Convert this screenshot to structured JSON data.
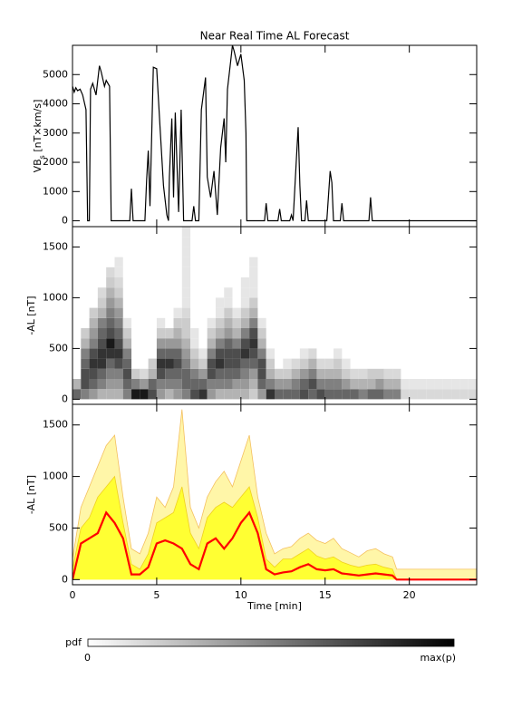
{
  "title": "Near Real Time AL Forecast",
  "chart_data": [
    {
      "type": "line",
      "ylabel": [
        "VB",
        "s",
        " [nT×km/s]"
      ],
      "color": "#000000",
      "xlim": [
        0,
        24
      ],
      "xticks": [
        0,
        5,
        10,
        15,
        20
      ],
      "ylim": [
        -200,
        6000
      ],
      "yticks": [
        0,
        1000,
        2000,
        3000,
        4000,
        5000
      ],
      "x": [
        0,
        0.1,
        0.2,
        0.3,
        0.45,
        0.6,
        0.8,
        0.9,
        1.0,
        1.07,
        1.2,
        1.4,
        1.6,
        1.7,
        1.9,
        2.0,
        2.2,
        2.3,
        3.4,
        3.5,
        3.6,
        4.3,
        4.4,
        4.5,
        4.6,
        4.8,
        5.0,
        5.2,
        5.4,
        5.6,
        5.7,
        5.75,
        5.9,
        6.0,
        6.1,
        6.2,
        6.3,
        6.45,
        6.6,
        7.1,
        7.2,
        7.3,
        7.5,
        7.65,
        7.9,
        8.0,
        8.2,
        8.4,
        8.6,
        8.8,
        9.0,
        9.1,
        9.2,
        9.4,
        9.5,
        9.6,
        9.8,
        10.0,
        10.2,
        10.3,
        10.35,
        11.4,
        11.5,
        11.6,
        12.2,
        12.3,
        12.4,
        12.9,
        13.0,
        13.1,
        13.2,
        13.3,
        13.4,
        13.5,
        13.6,
        13.8,
        13.9,
        14.0,
        15.1,
        15.3,
        15.4,
        15.5,
        15.9,
        16.0,
        16.1,
        17.6,
        17.7,
        17.8,
        24
      ],
      "values": [
        4600,
        4400,
        4550,
        4450,
        4500,
        4300,
        3800,
        0,
        0,
        4500,
        4700,
        4300,
        5300,
        5100,
        4600,
        4800,
        4600,
        0,
        0,
        1100,
        0,
        0,
        1400,
        2400,
        500,
        5250,
        5200,
        3200,
        1200,
        200,
        0,
        1500,
        3500,
        800,
        3700,
        2000,
        300,
        3800,
        0,
        0,
        500,
        0,
        0,
        3800,
        4900,
        1500,
        800,
        1700,
        200,
        2500,
        3500,
        2000,
        4500,
        5500,
        6000,
        5800,
        5300,
        5700,
        4800,
        3000,
        0,
        0,
        600,
        0,
        0,
        400,
        0,
        0,
        200,
        0,
        1100,
        2200,
        3200,
        1200,
        0,
        0,
        700,
        0,
        0,
        1700,
        1300,
        0,
        0,
        600,
        0,
        0,
        800,
        0,
        0
      ]
    },
    {
      "type": "heatmap",
      "ylabel": "-AL [nT]",
      "xlim": [
        0,
        24
      ],
      "xticks": [
        0,
        5,
        10,
        15,
        20
      ],
      "ylim": [
        -50,
        1700
      ],
      "yticks": [
        0,
        500,
        1000,
        1500
      ],
      "x_bin": 0.5,
      "y_bin": 100,
      "x": [
        0,
        0.5,
        1,
        1.5,
        2,
        2.5,
        3,
        3.5,
        4,
        4.5,
        5,
        5.5,
        6,
        6.5,
        7,
        7.5,
        8,
        8.5,
        9,
        9.5,
        10,
        10.5,
        11,
        11.5,
        12,
        12.5,
        13,
        13.5,
        14,
        14.5,
        15,
        15.5,
        16,
        16.5,
        17,
        17.5,
        18,
        18.5,
        19,
        19.5,
        20,
        20.5,
        21,
        21.5,
        22,
        22.5,
        23,
        23.5
      ],
      "pdf": [
        [
          0.6,
          0.3
        ],
        [
          0.5,
          0.7,
          0.7,
          0.6,
          0.5,
          0.3,
          0.2
        ],
        [
          0.4,
          0.6,
          0.7,
          0.8,
          0.7,
          0.5,
          0.4,
          0.3,
          0.2
        ],
        [
          0.3,
          0.5,
          0.6,
          0.8,
          0.8,
          0.7,
          0.6,
          0.5,
          0.3,
          0.2,
          0.15
        ],
        [
          0.3,
          0.4,
          0.5,
          0.6,
          0.8,
          0.9,
          0.7,
          0.6,
          0.5,
          0.4,
          0.3,
          0.2,
          0.15
        ],
        [
          0.3,
          0.4,
          0.5,
          0.7,
          0.8,
          0.7,
          0.6,
          0.5,
          0.4,
          0.3,
          0.2,
          0.15,
          0.1,
          0.1
        ],
        [
          0.5,
          0.6,
          0.7,
          0.6,
          0.5,
          0.3,
          0.2,
          0.1
        ],
        [
          0.9,
          0.5,
          0.2
        ],
        [
          0.9,
          0.4,
          0.15
        ],
        [
          0.7,
          0.6,
          0.3,
          0.2
        ],
        [
          0.4,
          0.5,
          0.7,
          0.8,
          0.6,
          0.4,
          0.2,
          0.1
        ],
        [
          0.3,
          0.5,
          0.6,
          0.8,
          0.6,
          0.4,
          0.2
        ],
        [
          0.4,
          0.5,
          0.6,
          0.7,
          0.6,
          0.4,
          0.3,
          0.2,
          0.1
        ],
        [
          0.5,
          0.6,
          0.6,
          0.5,
          0.4,
          0.3,
          0.2,
          0.2,
          0.15,
          0.1,
          0.1,
          0.1,
          0.1,
          0.1,
          0.1,
          0.1,
          0.1
        ],
        [
          0.7,
          0.6,
          0.5,
          0.3,
          0.2,
          0.1,
          0.1
        ],
        [
          0.8,
          0.6,
          0.4,
          0.2,
          0.1
        ],
        [
          0.4,
          0.5,
          0.7,
          0.7,
          0.5,
          0.3,
          0.2,
          0.1
        ],
        [
          0.3,
          0.5,
          0.6,
          0.8,
          0.7,
          0.5,
          0.3,
          0.2,
          0.1,
          0.1
        ],
        [
          0.3,
          0.5,
          0.6,
          0.7,
          0.7,
          0.6,
          0.4,
          0.3,
          0.2,
          0.1,
          0.1
        ],
        [
          0.3,
          0.4,
          0.6,
          0.7,
          0.7,
          0.5,
          0.3,
          0.2,
          0.1
        ],
        [
          0.3,
          0.4,
          0.5,
          0.6,
          0.8,
          0.7,
          0.5,
          0.3,
          0.2,
          0.1,
          0.1,
          0.1
        ],
        [
          0.2,
          0.3,
          0.4,
          0.6,
          0.7,
          0.8,
          0.7,
          0.5,
          0.3,
          0.2,
          0.1,
          0.1,
          0.1,
          0.1
        ],
        [
          0.4,
          0.6,
          0.7,
          0.7,
          0.5,
          0.3,
          0.2,
          0.1
        ],
        [
          0.8,
          0.5,
          0.3,
          0.2,
          0.1
        ],
        [
          0.6,
          0.4,
          0.2
        ],
        [
          0.6,
          0.4,
          0.2,
          0.1
        ],
        [
          0.6,
          0.5,
          0.3,
          0.15
        ],
        [
          0.7,
          0.6,
          0.4,
          0.2,
          0.1
        ],
        [
          0.6,
          0.7,
          0.5,
          0.3,
          0.15
        ],
        [
          0.7,
          0.5,
          0.3,
          0.15
        ],
        [
          0.6,
          0.5,
          0.3,
          0.15
        ],
        [
          0.6,
          0.5,
          0.3,
          0.2,
          0.1
        ],
        [
          0.6,
          0.4,
          0.2,
          0.1
        ],
        [
          0.6,
          0.3,
          0.15
        ],
        [
          0.5,
          0.3,
          0.15
        ],
        [
          0.6,
          0.3,
          0.2
        ],
        [
          0.6,
          0.4,
          0.2
        ],
        [
          0.5,
          0.3,
          0.15
        ],
        [
          0.5,
          0.3,
          0.15
        ],
        [
          0.15,
          0.1
        ],
        [
          0.15,
          0.1
        ],
        [
          0.15,
          0.1
        ],
        [
          0.15,
          0.1
        ],
        [
          0.15,
          0.1
        ],
        [
          0.15,
          0.1
        ],
        [
          0.15,
          0.1
        ],
        [
          0.15,
          0.1
        ],
        [
          0.15,
          0.1
        ]
      ]
    },
    {
      "type": "area",
      "ylabel": "-AL [nT]",
      "xlabel": "Time [min]",
      "show_xtick_labels": true,
      "xlim": [
        0,
        24
      ],
      "xticks": [
        0,
        5,
        10,
        15,
        20
      ],
      "ylim": [
        -50,
        1700
      ],
      "yticks": [
        0,
        500,
        1000,
        1500
      ],
      "x": [
        0,
        0.5,
        1,
        1.5,
        2,
        2.5,
        3,
        3.5,
        4,
        4.5,
        5,
        5.5,
        6,
        6.5,
        7,
        7.5,
        8,
        8.5,
        9,
        9.5,
        10,
        10.5,
        11,
        11.5,
        12,
        12.5,
        13,
        13.5,
        14,
        14.5,
        15,
        15.5,
        16,
        16.5,
        17,
        17.5,
        18,
        18.5,
        19,
        19.25,
        24
      ],
      "series": [
        {
          "style": "area",
          "color": "#fff6a8",
          "stroke": "#f4c060",
          "values": [
            200,
            700,
            900,
            1100,
            1300,
            1400,
            800,
            300,
            250,
            450,
            800,
            700,
            900,
            1650,
            700,
            500,
            800,
            950,
            1050,
            900,
            1150,
            1400,
            800,
            450,
            250,
            300,
            320,
            400,
            450,
            380,
            350,
            400,
            300,
            260,
            220,
            280,
            300,
            250,
            220,
            100,
            100
          ]
        },
        {
          "style": "area",
          "color": "#ffff33",
          "stroke": "#f0d020",
          "values": [
            100,
            500,
            600,
            800,
            900,
            1000,
            550,
            150,
            100,
            250,
            550,
            600,
            650,
            900,
            450,
            300,
            600,
            700,
            750,
            700,
            800,
            900,
            600,
            200,
            120,
            200,
            200,
            250,
            300,
            230,
            200,
            220,
            170,
            140,
            120,
            140,
            150,
            120,
            100,
            0,
            0
          ]
        },
        {
          "style": "line",
          "color": "#ff0000",
          "values": [
            0,
            350,
            400,
            450,
            650,
            550,
            400,
            50,
            50,
            120,
            350,
            380,
            350,
            300,
            150,
            100,
            350,
            400,
            300,
            400,
            550,
            650,
            450,
            100,
            50,
            70,
            80,
            120,
            150,
            100,
            90,
            100,
            60,
            50,
            40,
            50,
            60,
            50,
            40,
            0,
            0
          ]
        }
      ]
    }
  ],
  "colorbar": {
    "label": "pdf",
    "min_label": 0,
    "max_label": "max(p)"
  }
}
